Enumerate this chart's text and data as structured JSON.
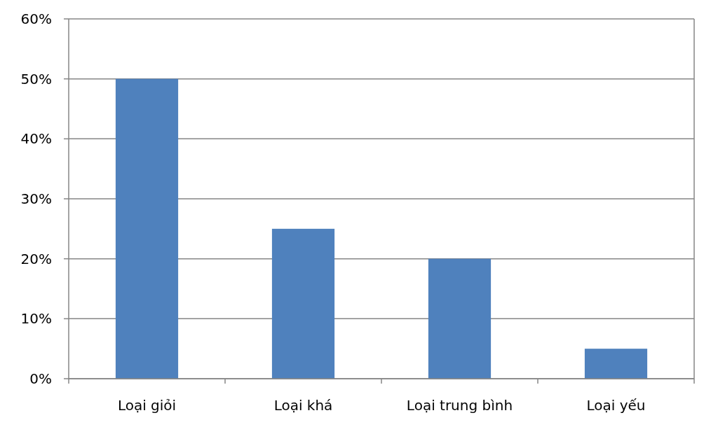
{
  "chart_data": {
    "type": "bar",
    "categories": [
      "Loại giỏi",
      "Loại khá",
      "Loại trung bình",
      "Loại yếu"
    ],
    "values": [
      50,
      25,
      20,
      5
    ],
    "color": "#4f81bd",
    "ylim": [
      0,
      60
    ],
    "yticks": [
      {
        "value": 0,
        "label": "0%"
      },
      {
        "value": 10,
        "label": "10%"
      },
      {
        "value": 20,
        "label": "20%"
      },
      {
        "value": 30,
        "label": "30%"
      },
      {
        "value": 40,
        "label": "40%"
      },
      {
        "value": 50,
        "label": "50%"
      },
      {
        "value": 60,
        "label": "60%"
      }
    ],
    "grid": "y"
  }
}
